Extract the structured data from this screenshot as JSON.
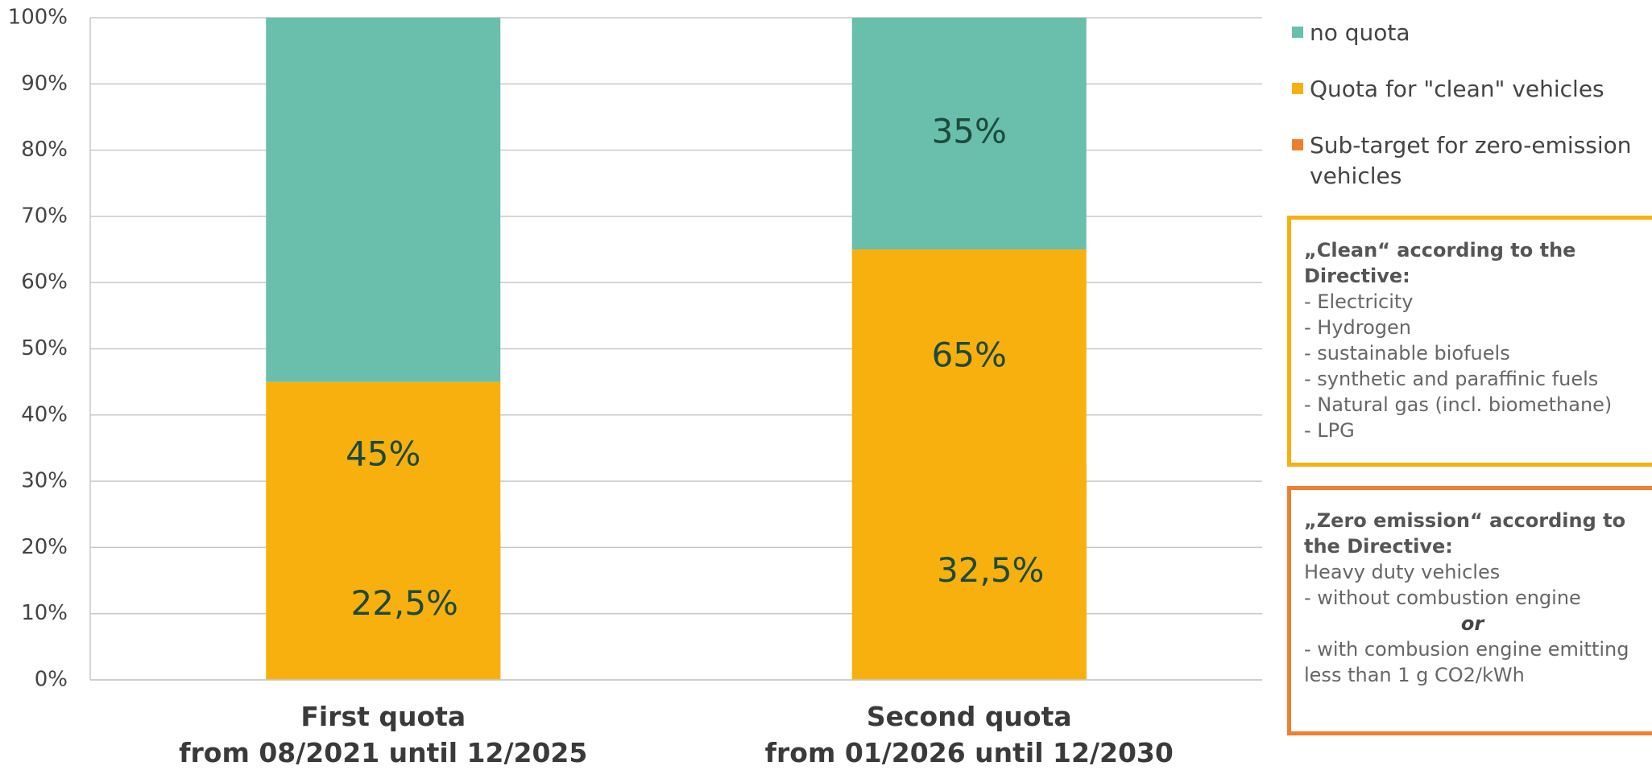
{
  "chart_data": {
    "type": "bar",
    "categories": [
      "First quota\nfrom 08/2021 until 12/2025",
      "Second quota\nfrom 01/2026 until 12/2030"
    ],
    "series": [
      {
        "name": "no quota",
        "color": "#69bfab",
        "values": [
          55,
          35
        ],
        "value_labels": [
          null,
          "35%"
        ]
      },
      {
        "name": "Quota for \"clean\" vehicles",
        "color": "#f8b00f",
        "values": [
          45,
          65
        ],
        "value_labels": [
          "45%",
          "65%"
        ]
      },
      {
        "name": "Sub-target for zero-emission vehicles",
        "color": "#ee7f31",
        "values": [
          22.5,
          32.5
        ],
        "value_labels": [
          "22,5%",
          "32,5%"
        ],
        "inset": true
      }
    ],
    "ylim": [
      0,
      100
    ],
    "yticks": [
      {
        "value": 0,
        "label": "0%"
      },
      {
        "value": 10,
        "label": "10%"
      },
      {
        "value": 20,
        "label": "20%"
      },
      {
        "value": 30,
        "label": "30%"
      },
      {
        "value": 40,
        "label": "40%"
      },
      {
        "value": 50,
        "label": "50%"
      },
      {
        "value": 60,
        "label": "60%"
      },
      {
        "value": 70,
        "label": "70%"
      },
      {
        "value": 80,
        "label": "80%"
      },
      {
        "value": 90,
        "label": "90%"
      },
      {
        "value": 100,
        "label": "100%"
      }
    ],
    "grid": true,
    "legend": "right",
    "boxes": [
      {
        "title": "„Clean“ according to the Directive:",
        "lines": [
          "- Electricity",
          "- Hydrogen",
          "- sustainable biofuels",
          "- synthetic and paraffinic fuels",
          "- Natural gas (incl. biomethane)",
          "- LPG"
        ]
      },
      {
        "title": "„Zero emission“ according to the Directive:",
        "lines": [
          "Heavy duty vehicles",
          "- without combustion engine",
          "or",
          "- with combusion engine emitting less than 1 g CO2/kWh"
        ]
      }
    ]
  }
}
